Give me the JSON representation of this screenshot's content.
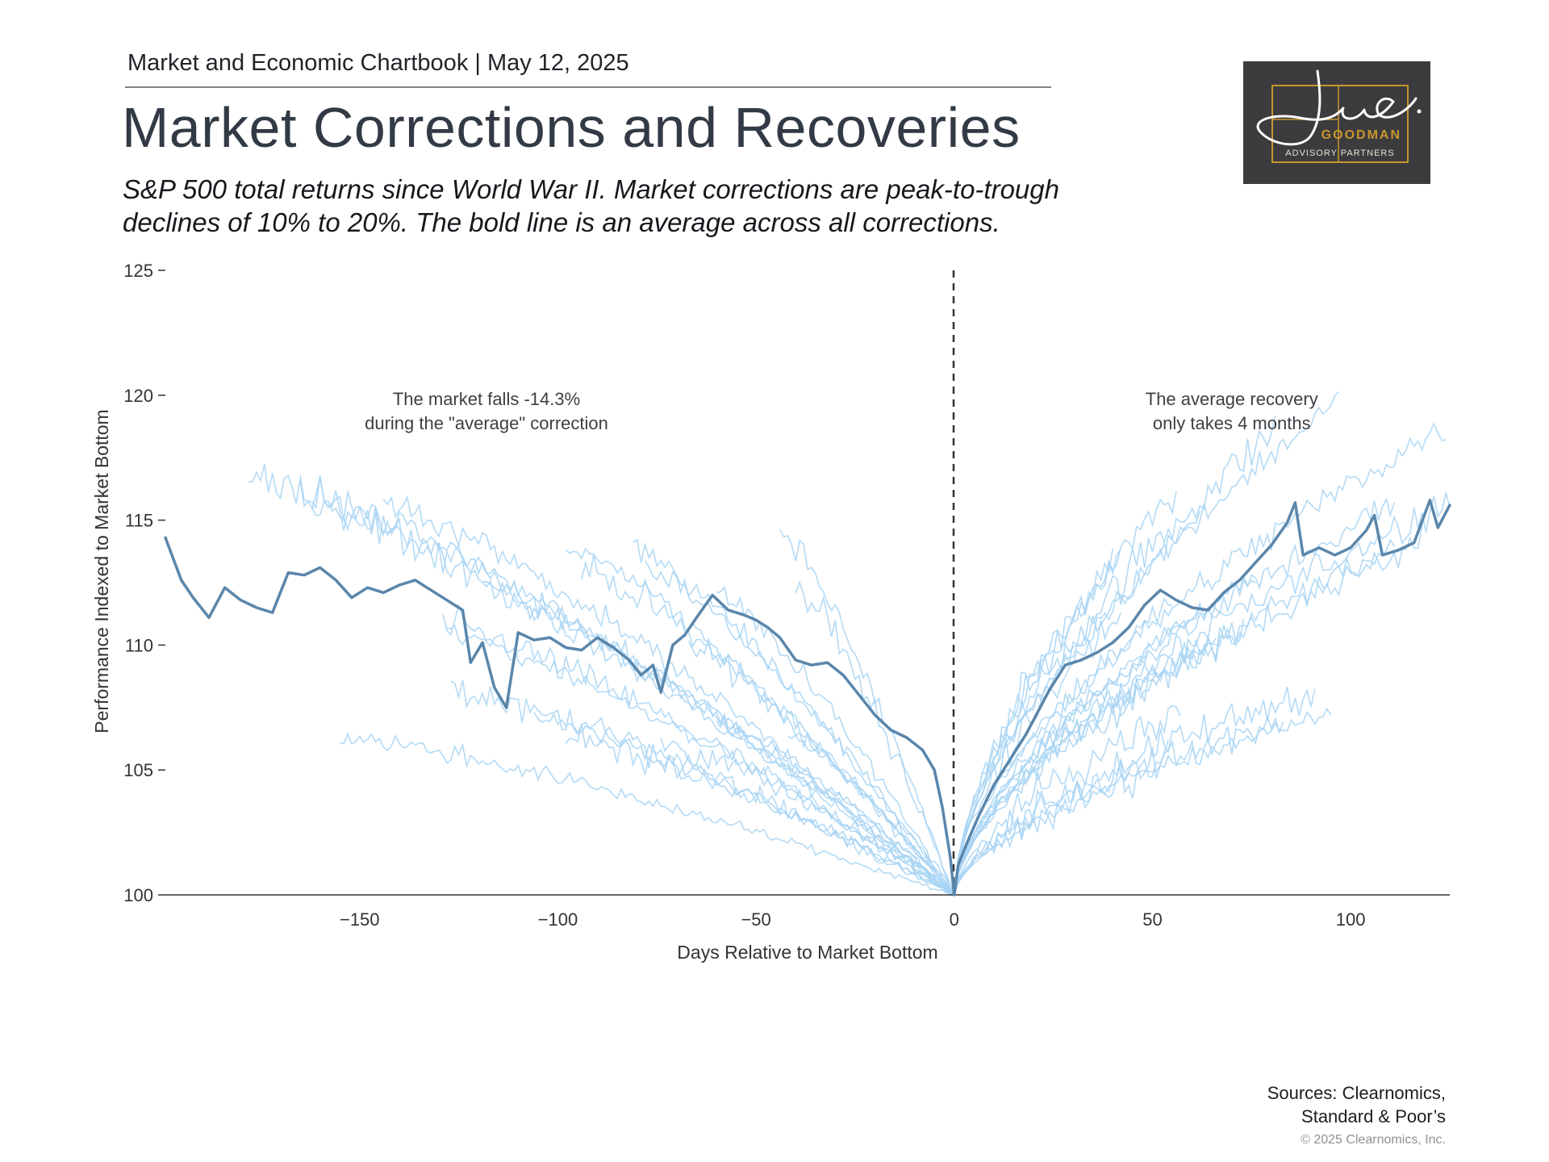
{
  "header": {
    "kicker": "Market and Economic Chartbook | May 12, 2025",
    "title": "Market Corrections and Recoveries",
    "subtitle": "S&P 500 total returns since World War II. Market corrections are peak-to-trough declines of 10% to 20%. The bold line is an average across all corrections."
  },
  "logo": {
    "signature_text": "Jon C.",
    "brand": "GOODMAN",
    "tagline": "ADVISORY PARTNERS",
    "colors": {
      "background": "#3c3c3e",
      "gold": "#c8972f",
      "signature": "#ffffff"
    }
  },
  "chart_data": {
    "type": "line",
    "title": "",
    "xlabel": "Days Relative to Market Bottom",
    "ylabel": "Performance Indexed to Market Bottom",
    "xlim": [
      -199,
      125
    ],
    "ylim": [
      100,
      125
    ],
    "x_ticks": [
      -150,
      -100,
      -50,
      0,
      50,
      100
    ],
    "x_tick_labels": [
      "−150",
      "−100",
      "−50",
      "0",
      "50",
      "100"
    ],
    "y_ticks": [
      100,
      105,
      110,
      115,
      120,
      125
    ],
    "y_tick_labels": [
      "100",
      "105",
      "110",
      "115",
      "120",
      "125"
    ],
    "grid": false,
    "reference_line": {
      "x": 0,
      "style": "dashed"
    },
    "annotations": [
      {
        "lines": [
          "The market falls -14.3%",
          "during the \"average\" correction"
        ],
        "x": -118,
        "y": 119.6
      },
      {
        "lines": [
          "The average recovery",
          "only takes 4 months"
        ],
        "x": 70,
        "y": 119.6
      }
    ],
    "colors": {
      "average": "#5a86ab",
      "individual": "#a7d4f3",
      "axis": "#333333"
    },
    "average_series": {
      "points": [
        [
          -199,
          114.3
        ],
        [
          -195,
          112.6
        ],
        [
          -192,
          111.9
        ],
        [
          -188,
          111.1
        ],
        [
          -184,
          112.3
        ],
        [
          -180,
          111.8
        ],
        [
          -176,
          111.5
        ],
        [
          -172,
          111.3
        ],
        [
          -168,
          112.9
        ],
        [
          -164,
          112.8
        ],
        [
          -160,
          113.1
        ],
        [
          -156,
          112.6
        ],
        [
          -152,
          111.9
        ],
        [
          -148,
          112.3
        ],
        [
          -144,
          112.1
        ],
        [
          -140,
          112.4
        ],
        [
          -136,
          112.6
        ],
        [
          -132,
          112.2
        ],
        [
          -128,
          111.8
        ],
        [
          -124,
          111.4
        ],
        [
          -122,
          109.3
        ],
        [
          -119,
          110.1
        ],
        [
          -116,
          108.3
        ],
        [
          -113,
          107.5
        ],
        [
          -110,
          110.5
        ],
        [
          -106,
          110.2
        ],
        [
          -102,
          110.3
        ],
        [
          -98,
          109.9
        ],
        [
          -94,
          109.8
        ],
        [
          -90,
          110.3
        ],
        [
          -86,
          109.9
        ],
        [
          -82,
          109.4
        ],
        [
          -79,
          108.8
        ],
        [
          -76,
          109.2
        ],
        [
          -74,
          108.1
        ],
        [
          -71,
          110.0
        ],
        [
          -68,
          110.4
        ],
        [
          -65,
          111.1
        ],
        [
          -61,
          112.0
        ],
        [
          -57,
          111.4
        ],
        [
          -53,
          111.2
        ],
        [
          -50,
          111.0
        ],
        [
          -47,
          110.7
        ],
        [
          -44,
          110.3
        ],
        [
          -40,
          109.4
        ],
        [
          -36,
          109.2
        ],
        [
          -32,
          109.3
        ],
        [
          -28,
          108.8
        ],
        [
          -24,
          108.0
        ],
        [
          -20,
          107.2
        ],
        [
          -16,
          106.6
        ],
        [
          -12,
          106.3
        ],
        [
          -8,
          105.8
        ],
        [
          -5,
          105.0
        ],
        [
          -3,
          103.5
        ],
        [
          -1,
          101.5
        ],
        [
          0,
          100.0
        ],
        [
          1,
          101.2
        ],
        [
          3,
          102.0
        ],
        [
          6,
          103.1
        ],
        [
          10,
          104.4
        ],
        [
          14,
          105.4
        ],
        [
          18,
          106.4
        ],
        [
          21,
          107.3
        ],
        [
          24,
          108.2
        ],
        [
          28,
          109.2
        ],
        [
          32,
          109.4
        ],
        [
          36,
          109.7
        ],
        [
          40,
          110.1
        ],
        [
          44,
          110.7
        ],
        [
          48,
          111.6
        ],
        [
          52,
          112.2
        ],
        [
          56,
          111.8
        ],
        [
          60,
          111.5
        ],
        [
          64,
          111.4
        ],
        [
          68,
          112.1
        ],
        [
          72,
          112.6
        ],
        [
          76,
          113.3
        ],
        [
          80,
          114.0
        ],
        [
          84,
          114.9
        ],
        [
          86,
          115.7
        ],
        [
          88,
          113.6
        ],
        [
          92,
          113.9
        ],
        [
          96,
          113.6
        ],
        [
          100,
          113.9
        ],
        [
          104,
          114.6
        ],
        [
          106,
          115.2
        ],
        [
          108,
          113.6
        ],
        [
          112,
          113.8
        ],
        [
          116,
          114.1
        ],
        [
          120,
          115.8
        ],
        [
          122,
          114.7
        ],
        [
          125,
          115.6
        ]
      ]
    },
    "individual_series_description": "Many thin light-blue lines, one per historical correction, all converging to 100 at day 0"
  },
  "footer": {
    "sources_line1": "Sources: Clearnomics,",
    "sources_line2": "Standard & Poor’s",
    "copyright": "© 2025 Clearnomics, Inc."
  }
}
